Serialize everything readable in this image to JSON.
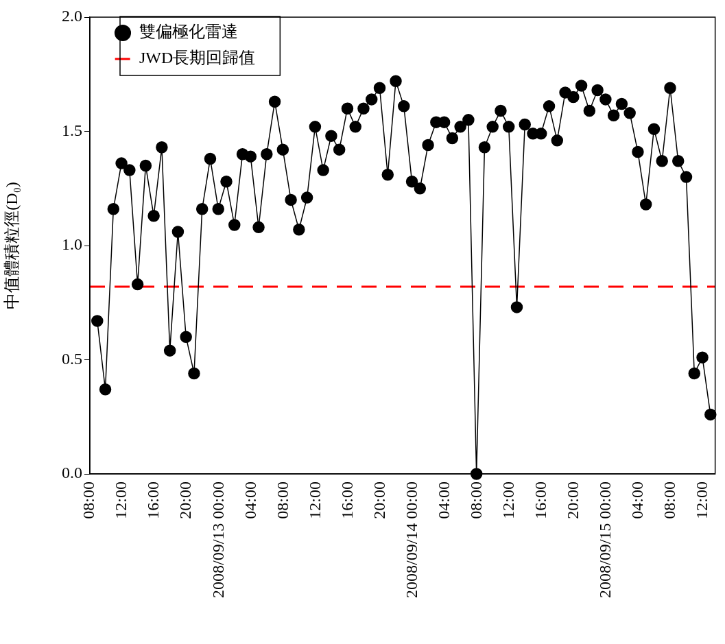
{
  "chart_data": {
    "type": "line",
    "ylabel": "中值體積粒徑(D₀)",
    "marker": "circle",
    "line_style": "solid",
    "legend": "top left",
    "x": [
      "2008-09-12T08:55",
      "2008-09-12T09:55",
      "2008-09-12T10:55",
      "2008-09-12T11:55",
      "2008-09-12T12:55",
      "2008-09-12T13:55",
      "2008-09-12T14:55",
      "2008-09-12T15:55",
      "2008-09-12T16:55",
      "2008-09-12T17:55",
      "2008-09-12T18:55",
      "2008-09-12T19:55",
      "2008-09-12T20:55",
      "2008-09-12T21:55",
      "2008-09-12T22:55",
      "2008-09-12T23:55",
      "2008-09-13T00:55",
      "2008-09-13T01:55",
      "2008-09-13T02:55",
      "2008-09-13T03:55",
      "2008-09-13T04:55",
      "2008-09-13T05:55",
      "2008-09-13T06:55",
      "2008-09-13T07:55",
      "2008-09-13T08:55",
      "2008-09-13T09:55",
      "2008-09-13T10:55",
      "2008-09-13T11:55",
      "2008-09-13T12:55",
      "2008-09-13T13:55",
      "2008-09-13T14:55",
      "2008-09-13T15:55",
      "2008-09-13T16:55",
      "2008-09-13T17:55",
      "2008-09-13T18:55",
      "2008-09-13T19:55",
      "2008-09-13T20:55",
      "2008-09-13T21:55",
      "2008-09-13T22:55",
      "2008-09-13T23:55",
      "2008-09-14T00:55",
      "2008-09-14T01:55",
      "2008-09-14T02:55",
      "2008-09-14T03:55",
      "2008-09-14T04:55",
      "2008-09-14T05:55",
      "2008-09-14T06:55",
      "2008-09-14T07:55",
      "2008-09-14T08:55",
      "2008-09-14T09:55",
      "2008-09-14T10:55",
      "2008-09-14T11:55",
      "2008-09-14T12:55",
      "2008-09-14T13:55",
      "2008-09-14T14:55",
      "2008-09-14T15:55",
      "2008-09-14T16:55",
      "2008-09-14T17:55",
      "2008-09-14T18:55",
      "2008-09-14T19:55",
      "2008-09-14T20:55",
      "2008-09-14T21:55",
      "2008-09-14T22:55",
      "2008-09-14T23:55",
      "2008-09-15T00:55",
      "2008-09-15T01:55",
      "2008-09-15T02:55",
      "2008-09-15T03:55",
      "2008-09-15T04:55",
      "2008-09-15T05:55",
      "2008-09-15T06:55",
      "2008-09-15T07:55",
      "2008-09-15T08:55",
      "2008-09-15T09:55",
      "2008-09-15T10:55",
      "2008-09-15T11:55",
      "2008-09-15T12:55"
    ],
    "series": [
      {
        "name": "雙偏極化雷達",
        "color": "#000000",
        "values": [
          0.67,
          0.37,
          1.16,
          1.36,
          1.33,
          0.83,
          1.35,
          1.13,
          1.43,
          0.54,
          1.06,
          0.6,
          0.44,
          1.16,
          1.38,
          1.16,
          1.28,
          1.09,
          1.4,
          1.39,
          1.08,
          1.4,
          1.63,
          1.42,
          1.2,
          1.07,
          1.21,
          1.52,
          1.33,
          1.48,
          1.42,
          1.6,
          1.52,
          1.6,
          1.64,
          1.69,
          1.31,
          1.72,
          1.61,
          1.28,
          1.25,
          1.44,
          1.54,
          1.54,
          1.47,
          1.52,
          1.55,
          0.0,
          1.43,
          1.52,
          1.59,
          1.52,
          0.73,
          1.53,
          1.49,
          1.49,
          1.61,
          1.46,
          1.67,
          1.65,
          1.7,
          1.59,
          1.68,
          1.64,
          1.57,
          1.62,
          1.58,
          1.41,
          1.18,
          1.51,
          1.37,
          1.69,
          1.37,
          1.3,
          0.44,
          0.51,
          0.26
        ]
      }
    ],
    "ref_lines": [
      {
        "axis": "y",
        "value": 0.82,
        "label": "JWD長期回歸值",
        "color": "#ff0000",
        "line_style": "dashed"
      }
    ],
    "xlim": [
      "2008-09-12T08:00",
      "2008-09-15T13:30"
    ],
    "xticks": [
      {
        "value": "2008-09-12T08:00",
        "label": "08:00"
      },
      {
        "value": "2008-09-12T12:00",
        "label": "12:00"
      },
      {
        "value": "2008-09-12T16:00",
        "label": "16:00"
      },
      {
        "value": "2008-09-12T20:00",
        "label": "20:00"
      },
      {
        "value": "2008-09-13T00:00",
        "label": "2008/09/13 00:00"
      },
      {
        "value": "2008-09-13T04:00",
        "label": "04:00"
      },
      {
        "value": "2008-09-13T08:00",
        "label": "08:00"
      },
      {
        "value": "2008-09-13T12:00",
        "label": "12:00"
      },
      {
        "value": "2008-09-13T16:00",
        "label": "16:00"
      },
      {
        "value": "2008-09-13T20:00",
        "label": "20:00"
      },
      {
        "value": "2008-09-14T00:00",
        "label": "2008/09/14 00:00"
      },
      {
        "value": "2008-09-14T04:00",
        "label": "04:00"
      },
      {
        "value": "2008-09-14T08:00",
        "label": "08:00"
      },
      {
        "value": "2008-09-14T12:00",
        "label": "12:00"
      },
      {
        "value": "2008-09-14T16:00",
        "label": "16:00"
      },
      {
        "value": "2008-09-14T20:00",
        "label": "20:00"
      },
      {
        "value": "2008-09-15T00:00",
        "label": "2008/09/15 00:00"
      },
      {
        "value": "2008-09-15T04:00",
        "label": "04:00"
      },
      {
        "value": "2008-09-15T08:00",
        "label": "08:00"
      },
      {
        "value": "2008-09-15T12:00",
        "label": "12:00"
      }
    ],
    "ylim": [
      0,
      2
    ],
    "yticks": [
      {
        "value": 0,
        "label": "0.0"
      },
      {
        "value": 0.5,
        "label": "0.5"
      },
      {
        "value": 1,
        "label": "1.0"
      },
      {
        "value": 1.5,
        "label": "1.5"
      },
      {
        "value": 2,
        "label": "2.0"
      }
    ]
  }
}
